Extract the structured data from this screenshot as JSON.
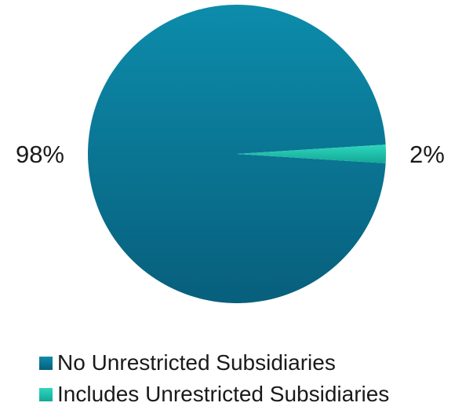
{
  "chart_data": {
    "type": "pie",
    "slices": [
      {
        "label": "No Unrestricted Subsidiaries",
        "value": 98,
        "display": "98%",
        "color": "#0a7898"
      },
      {
        "label": "Includes Unrestricted Subsidiaries",
        "value": 2,
        "display": "2%",
        "color": "#1fbfa8"
      }
    ],
    "legend_position": "bottom"
  }
}
